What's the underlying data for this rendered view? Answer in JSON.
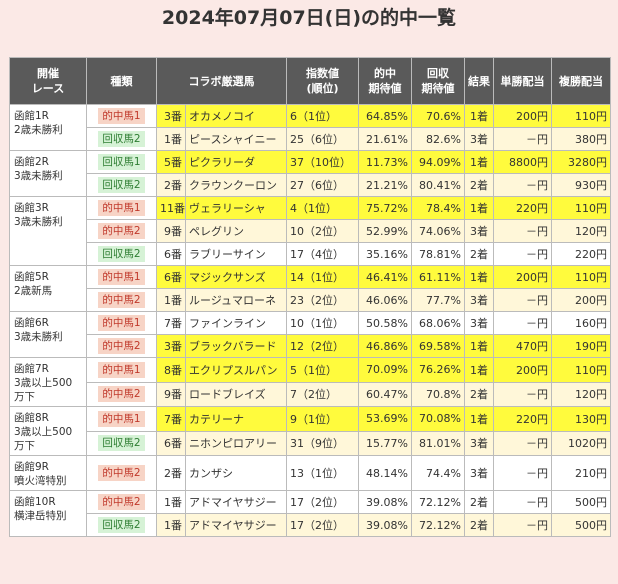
{
  "title": "2024年07月07日(日)の的中一覧",
  "headers": {
    "race": [
      "開催",
      "レース"
    ],
    "type": "種類",
    "horse": "コラボ厳選馬",
    "index": [
      "指数値",
      "(順位)"
    ],
    "hit_exp": [
      "的中",
      "期待値"
    ],
    "ret_exp": [
      "回収",
      "期待値"
    ],
    "result": "結果",
    "win": "単勝配当",
    "fuku": "複勝配当"
  },
  "races": [
    {
      "race": [
        "函館1R",
        "2歳未勝利"
      ],
      "rows": [
        {
          "type": "的中馬1",
          "kind": "hit",
          "hl": true,
          "num": "3番",
          "horse": "オカメノコイ",
          "index": "6（1位）",
          "hit_exp": "64.85%",
          "ret_exp": "70.6%",
          "result": "1着",
          "win": "200円",
          "fuku": "110円"
        },
        {
          "type": "回収馬2",
          "kind": "ret",
          "hl": false,
          "num": "1番",
          "horse": "ピースシャイニー",
          "index": "25（6位）",
          "hit_exp": "21.61%",
          "ret_exp": "82.6%",
          "result": "3着",
          "win": "－円",
          "fuku": "380円"
        }
      ]
    },
    {
      "race": [
        "函館2R",
        "3歳未勝利"
      ],
      "rows": [
        {
          "type": "回収馬1",
          "kind": "ret",
          "hl": true,
          "num": "5番",
          "horse": "ピクラリーダ",
          "index": "37（10位）",
          "hit_exp": "11.73%",
          "ret_exp": "94.09%",
          "result": "1着",
          "win": "8800円",
          "fuku": "3280円"
        },
        {
          "type": "回収馬2",
          "kind": "ret",
          "hl": false,
          "num": "2番",
          "horse": "クラウンクーロン",
          "index": "27（6位）",
          "hit_exp": "21.21%",
          "ret_exp": "80.41%",
          "result": "2着",
          "win": "－円",
          "fuku": "930円"
        }
      ]
    },
    {
      "race": [
        "函館3R",
        "3歳未勝利"
      ],
      "rows": [
        {
          "type": "的中馬1",
          "kind": "hit",
          "hl": true,
          "num": "11番",
          "horse": "ヴェラリーシャ",
          "index": "4（1位）",
          "hit_exp": "75.72%",
          "ret_exp": "78.4%",
          "result": "1着",
          "win": "220円",
          "fuku": "110円"
        },
        {
          "type": "的中馬2",
          "kind": "hit",
          "hl": false,
          "num": "9番",
          "horse": "ペレグリン",
          "index": "10（2位）",
          "hit_exp": "52.99%",
          "ret_exp": "74.06%",
          "result": "3着",
          "win": "－円",
          "fuku": "120円"
        },
        {
          "type": "回収馬2",
          "kind": "ret",
          "hl": false,
          "num": "6番",
          "horse": "ラブリーサイン",
          "index": "17（4位）",
          "hit_exp": "35.16%",
          "ret_exp": "78.81%",
          "result": "2着",
          "win": "－円",
          "fuku": "220円"
        }
      ]
    },
    {
      "race": [
        "函館5R",
        "2歳新馬"
      ],
      "rows": [
        {
          "type": "的中馬1",
          "kind": "hit",
          "hl": true,
          "num": "6番",
          "horse": "マジックサンズ",
          "index": "14（1位）",
          "hit_exp": "46.41%",
          "ret_exp": "61.11%",
          "result": "1着",
          "win": "200円",
          "fuku": "110円"
        },
        {
          "type": "的中馬2",
          "kind": "hit",
          "hl": false,
          "num": "1番",
          "horse": "ルージュマローネ",
          "index": "23（2位）",
          "hit_exp": "46.06%",
          "ret_exp": "77.7%",
          "result": "3着",
          "win": "－円",
          "fuku": "200円"
        }
      ]
    },
    {
      "race": [
        "函館6R",
        "3歳未勝利"
      ],
      "rows": [
        {
          "type": "的中馬1",
          "kind": "hit",
          "hl": false,
          "num": "7番",
          "horse": "ファインライン",
          "index": "10（1位）",
          "hit_exp": "50.58%",
          "ret_exp": "68.06%",
          "result": "3着",
          "win": "－円",
          "fuku": "160円"
        },
        {
          "type": "的中馬2",
          "kind": "hit",
          "hl": true,
          "num": "3番",
          "horse": "ブラックバラード",
          "index": "12（2位）",
          "hit_exp": "46.86%",
          "ret_exp": "69.58%",
          "result": "1着",
          "win": "470円",
          "fuku": "190円"
        }
      ]
    },
    {
      "race": [
        "函館7R",
        "3歳以上500",
        "万下"
      ],
      "rows": [
        {
          "type": "的中馬1",
          "kind": "hit",
          "hl": true,
          "num": "8番",
          "horse": "エクリプスルパン",
          "index": "5（1位）",
          "hit_exp": "70.09%",
          "ret_exp": "76.26%",
          "result": "1着",
          "win": "200円",
          "fuku": "110円"
        },
        {
          "type": "的中馬2",
          "kind": "hit",
          "hl": false,
          "num": "9番",
          "horse": "ロードブレイズ",
          "index": "7（2位）",
          "hit_exp": "60.47%",
          "ret_exp": "70.8%",
          "result": "2着",
          "win": "－円",
          "fuku": "120円"
        }
      ]
    },
    {
      "race": [
        "函館8R",
        "3歳以上500",
        "万下"
      ],
      "rows": [
        {
          "type": "的中馬1",
          "kind": "hit",
          "hl": true,
          "num": "7番",
          "horse": "カテリーナ",
          "index": "9（1位）",
          "hit_exp": "53.69%",
          "ret_exp": "70.08%",
          "result": "1着",
          "win": "220円",
          "fuku": "130円"
        },
        {
          "type": "回収馬2",
          "kind": "ret",
          "hl": false,
          "num": "6番",
          "horse": "ニホンピロアリー",
          "index": "31（9位）",
          "hit_exp": "15.77%",
          "ret_exp": "81.01%",
          "result": "3着",
          "win": "－円",
          "fuku": "1020円"
        }
      ]
    },
    {
      "race": [
        "函館9R",
        "噴火湾特別"
      ],
      "rows": [
        {
          "type": "的中馬2",
          "kind": "hit",
          "hl": false,
          "num": "2番",
          "horse": "カンザシ",
          "index": "13（1位）",
          "hit_exp": "48.14%",
          "ret_exp": "74.4%",
          "result": "3着",
          "win": "－円",
          "fuku": "210円"
        }
      ]
    },
    {
      "race": [
        "函館10R",
        "横津岳特別"
      ],
      "rows": [
        {
          "type": "的中馬2",
          "kind": "hit",
          "hl": false,
          "num": "1番",
          "horse": "アドマイヤサジー",
          "index": "17（2位）",
          "hit_exp": "39.08%",
          "ret_exp": "72.12%",
          "result": "2着",
          "win": "－円",
          "fuku": "500円"
        },
        {
          "type": "回収馬2",
          "kind": "ret",
          "hl": false,
          "num": "1番",
          "horse": "アドマイヤサジー",
          "index": "17（2位）",
          "hit_exp": "39.08%",
          "ret_exp": "72.12%",
          "result": "2着",
          "win": "－円",
          "fuku": "500円"
        }
      ]
    }
  ]
}
